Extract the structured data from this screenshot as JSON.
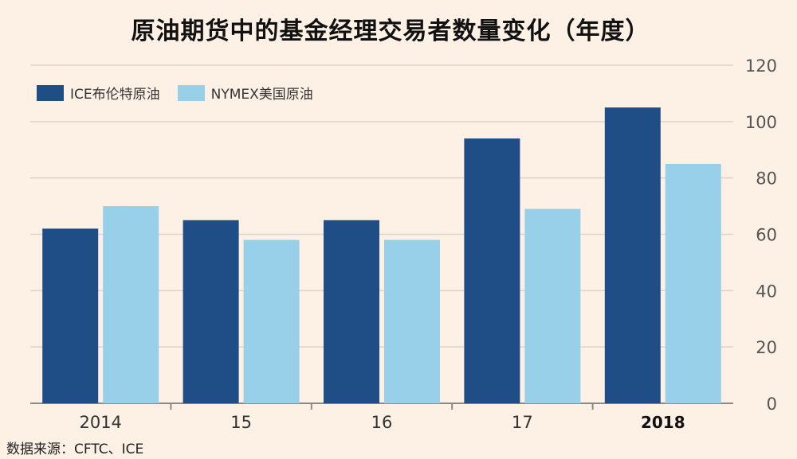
{
  "chart_data": {
    "type": "bar",
    "title": "原油期货中的基金经理交易者数量变化（年度）",
    "categories": [
      "2014",
      "15",
      "16",
      "17",
      "2018"
    ],
    "series": [
      {
        "name": "ICE布伦特原油",
        "values": [
          62,
          65,
          65,
          94,
          105
        ],
        "color": "#1f4e86"
      },
      {
        "name": "NYMEX美国原油",
        "values": [
          70,
          58,
          58,
          69,
          85
        ],
        "color": "#98d0ea"
      }
    ],
    "ylim": [
      0,
      120
    ],
    "yticks": [
      0,
      20,
      40,
      60,
      80,
      100,
      120
    ],
    "xlabel": "",
    "ylabel": "",
    "grid": true,
    "legend_position": "top-left",
    "y_axis_side": "right"
  },
  "source_note": "数据来源：CFTC、ICE",
  "colors": {
    "background": "#fdf1e6",
    "gridline": "#ddd3c9",
    "axis": "#8a8a8a"
  }
}
